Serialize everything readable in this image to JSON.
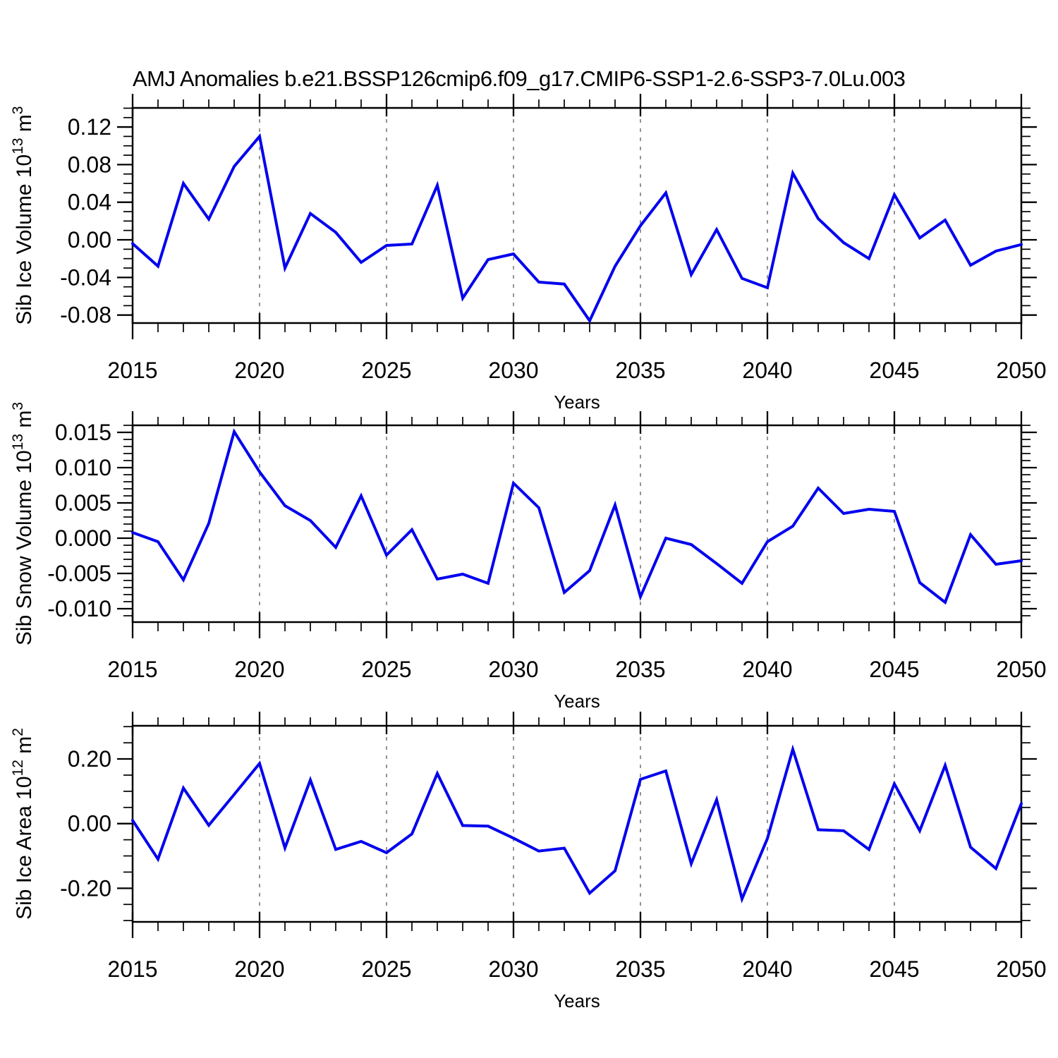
{
  "title": "AMJ Anomalies b.e21.BSSP126cmip6.f09_g17.CMIP6-SSP1-2.6-SSP3-7.0Lu.003",
  "colors": {
    "line": "#0000ee",
    "axis": "#000000",
    "grid": "#7a7a7a",
    "background": "#ffffff"
  },
  "chart_data": [
    {
      "type": "line",
      "title": "Sib Ice Volume 10^13 m^3",
      "ylabel_parts": {
        "main": "Sib Ice Volume 10",
        "exp": "13",
        "unit": " m",
        "unit_exp": "3"
      },
      "xlabel": "Years",
      "x": [
        2015,
        2016,
        2017,
        2018,
        2019,
        2020,
        2021,
        2022,
        2023,
        2024,
        2025,
        2026,
        2027,
        2028,
        2029,
        2030,
        2031,
        2032,
        2033,
        2034,
        2035,
        2036,
        2037,
        2038,
        2039,
        2040,
        2041,
        2042,
        2043,
        2044,
        2045,
        2046,
        2047,
        2048,
        2049,
        2050
      ],
      "values": [
        -0.004,
        -0.028,
        0.06,
        0.022,
        0.078,
        0.11,
        -0.03,
        0.028,
        0.008,
        -0.024,
        -0.006,
        -0.0045,
        0.058,
        -0.062,
        -0.021,
        -0.015,
        -0.045,
        -0.047,
        -0.086,
        -0.028,
        0.015,
        0.05,
        -0.037,
        0.011,
        -0.041,
        -0.051,
        0.071,
        0.0225,
        -0.003,
        -0.02,
        0.048,
        0.002,
        0.021,
        -0.027,
        -0.012,
        -0.005
      ],
      "ylim": [
        -0.0885,
        0.1403
      ],
      "ytick_values": [
        0.12,
        0.08,
        0.04,
        0.0,
        -0.04,
        -0.08
      ],
      "ytick_labels": [
        "0.12",
        "0.08",
        "0.04",
        "0.00",
        "-0.04",
        "-0.08"
      ],
      "yminor_step": 0.01,
      "xlim": [
        2015,
        2050
      ],
      "xtick_values": [
        2015,
        2020,
        2025,
        2030,
        2035,
        2040,
        2045,
        2050
      ],
      "xtick_labels": [
        "2015",
        "2020",
        "2025",
        "2030",
        "2035",
        "2040",
        "2045",
        "2050"
      ],
      "xminor_step": 1,
      "gridline_x": [
        2020,
        2025,
        2030,
        2035,
        2040,
        2045
      ],
      "grid": "vertical-dashed",
      "legend": "none"
    },
    {
      "type": "line",
      "title": "Sib Snow Volume 10^13 m^3",
      "ylabel_parts": {
        "main": "Sib Snow Volume 10",
        "exp": "13",
        "unit": " m",
        "unit_exp": "3"
      },
      "xlabel": "Years",
      "x": [
        2015,
        2016,
        2017,
        2018,
        2019,
        2020,
        2021,
        2022,
        2023,
        2024,
        2025,
        2026,
        2027,
        2028,
        2029,
        2030,
        2031,
        2032,
        2033,
        2034,
        2035,
        2036,
        2037,
        2038,
        2039,
        2040,
        2041,
        2042,
        2043,
        2044,
        2045,
        2046,
        2047,
        2048,
        2049,
        2050
      ],
      "values": [
        0.0008,
        -0.0005,
        -0.0059,
        0.0021,
        0.0151,
        0.0094,
        0.0046,
        0.0025,
        -0.0013,
        0.006,
        -0.0024,
        0.0012,
        -0.0058,
        -0.0051,
        -0.0064,
        0.0078,
        0.0043,
        -0.0077,
        -0.0046,
        0.0047,
        -0.0083,
        0.0,
        -0.0009,
        -0.0036,
        -0.0064,
        -0.0005,
        0.0017,
        0.0071,
        0.0035,
        0.0041,
        0.0038,
        -0.0063,
        -0.0091,
        0.0005,
        -0.0037,
        -0.0032
      ],
      "ylim": [
        -0.0119,
        0.016
      ],
      "ytick_values": [
        0.015,
        0.01,
        0.005,
        0.0,
        -0.005,
        -0.01
      ],
      "ytick_labels": [
        "0.015",
        "0.010",
        "0.005",
        "0.000",
        "-0.005",
        "-0.010"
      ],
      "yminor_step": 0.001,
      "xlim": [
        2015,
        2050
      ],
      "xtick_values": [
        2015,
        2020,
        2025,
        2030,
        2035,
        2040,
        2045,
        2050
      ],
      "xtick_labels": [
        "2015",
        "2020",
        "2025",
        "2030",
        "2035",
        "2040",
        "2045",
        "2050"
      ],
      "xminor_step": 1,
      "gridline_x": [
        2020,
        2025,
        2030,
        2035,
        2040,
        2045
      ],
      "grid": "vertical-dashed",
      "legend": "none"
    },
    {
      "type": "line",
      "title": "Sib Ice Area 10^12 m^2",
      "ylabel_parts": {
        "main": "Sib Ice Area 10",
        "exp": "12",
        "unit": " m",
        "unit_exp": "2"
      },
      "xlabel": "Years",
      "x": [
        2015,
        2016,
        2017,
        2018,
        2019,
        2020,
        2021,
        2022,
        2023,
        2024,
        2025,
        2026,
        2027,
        2028,
        2029,
        2030,
        2031,
        2032,
        2033,
        2034,
        2035,
        2036,
        2037,
        2038,
        2039,
        2040,
        2041,
        2042,
        2043,
        2044,
        2045,
        2046,
        2047,
        2048,
        2049,
        2050
      ],
      "values": [
        0.01,
        -0.11,
        0.11,
        -0.005,
        0.09,
        0.186,
        -0.075,
        0.135,
        -0.08,
        -0.055,
        -0.09,
        -0.032,
        0.155,
        -0.006,
        -0.008,
        -0.045,
        -0.085,
        -0.076,
        -0.215,
        -0.146,
        0.137,
        0.163,
        -0.124,
        0.074,
        -0.233,
        -0.046,
        0.23,
        -0.019,
        -0.022,
        -0.08,
        0.123,
        -0.022,
        0.18,
        -0.073,
        -0.139,
        0.062
      ],
      "ylim": [
        -0.304,
        0.3026
      ],
      "ytick_values": [
        0.2,
        0.0,
        -0.2
      ],
      "ytick_labels": [
        "0.20",
        "0.00",
        "-0.20"
      ],
      "yminor_step": 0.05,
      "xlim": [
        2015,
        2050
      ],
      "xtick_values": [
        2015,
        2020,
        2025,
        2030,
        2035,
        2040,
        2045,
        2050
      ],
      "xtick_labels": [
        "2015",
        "2020",
        "2025",
        "2030",
        "2035",
        "2040",
        "2045",
        "2050"
      ],
      "xminor_step": 1,
      "gridline_x": [
        2020,
        2025,
        2030,
        2035,
        2040,
        2045
      ],
      "grid": "vertical-dashed",
      "legend": "none"
    }
  ]
}
